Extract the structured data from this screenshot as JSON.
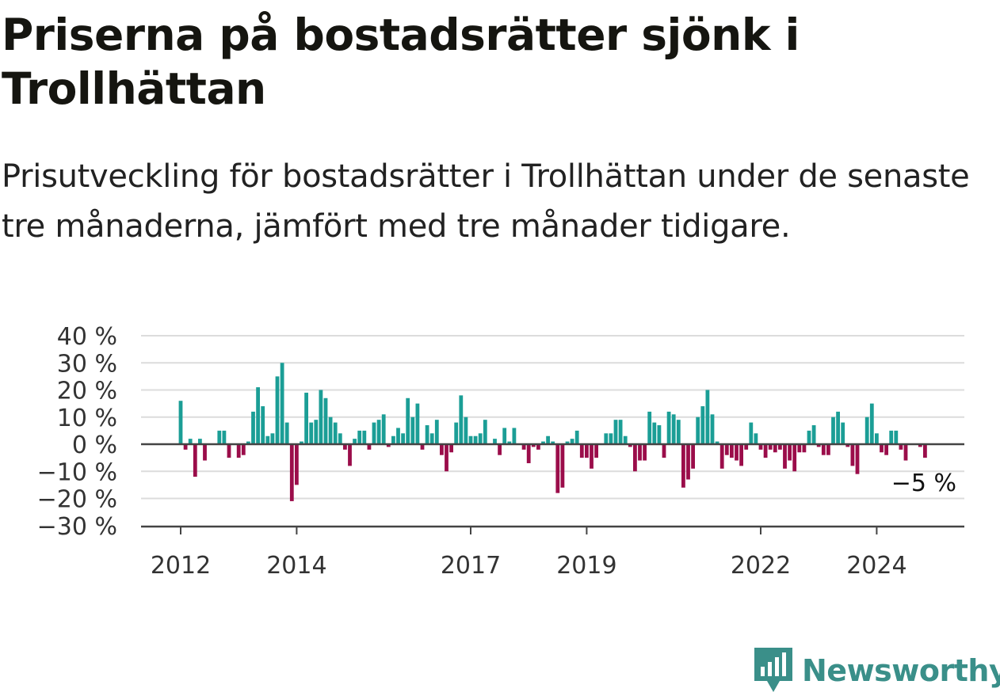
{
  "title": "Priserna på bostadsrätter sjönk i Trollhättan",
  "subtitle": "Prisutveckling för bostadsrätter i Trollhättan under de senaste tre månaderna, jämfört med tre månader tidigare.",
  "brand": "Newsworthy",
  "colors": {
    "positive": "#1b9e96",
    "negative": "#9b0d4a",
    "grid": "#dcdcdc",
    "axis": "#444444",
    "brand": "#3a8f89"
  },
  "chart_data": {
    "type": "bar",
    "title": "Priserna på bostadsrätter sjönk i Trollhättan",
    "xlabel": "",
    "ylabel": "",
    "ylim": [
      -30,
      40
    ],
    "grid": true,
    "y_ticks": [
      {
        "value": 40,
        "label": "40 %"
      },
      {
        "value": 30,
        "label": "30 %"
      },
      {
        "value": 20,
        "label": "20 %"
      },
      {
        "value": 10,
        "label": "10 %"
      },
      {
        "value": 0,
        "label": "0 %"
      },
      {
        "value": -10,
        "label": "−10 %"
      },
      {
        "value": -20,
        "label": "−20 %"
      },
      {
        "value": -30,
        "label": "−30 %"
      }
    ],
    "x_ticks": [
      {
        "month": "2012-01",
        "label": "2012"
      },
      {
        "month": "2014-01",
        "label": "2014"
      },
      {
        "month": "2017-01",
        "label": "2017"
      },
      {
        "month": "2019-01",
        "label": "2019"
      },
      {
        "month": "2022-01",
        "label": "2022"
      },
      {
        "month": "2024-01",
        "label": "2024"
      }
    ],
    "start_month": "2012-01",
    "values": [
      16,
      -2,
      2,
      -12,
      2,
      -6,
      0,
      0,
      5,
      5,
      -5,
      0,
      -5,
      -4,
      1,
      12,
      21,
      14,
      3,
      4,
      25,
      30,
      8,
      -21,
      -15,
      1,
      19,
      8,
      9,
      20,
      17,
      10,
      8,
      4,
      -2,
      -8,
      2,
      5,
      5,
      -2,
      8,
      9,
      11,
      -1,
      3,
      6,
      4,
      17,
      10,
      15,
      -2,
      7,
      4,
      9,
      -4,
      -10,
      -3,
      8,
      18,
      10,
      3,
      3,
      4,
      9,
      0,
      2,
      -4,
      6,
      1,
      6,
      0,
      -2,
      -7,
      -1,
      -2,
      1,
      3,
      1,
      -18,
      -16,
      1,
      2,
      5,
      -5,
      -5,
      -9,
      -5,
      0,
      4,
      4,
      9,
      9,
      3,
      -1,
      -10,
      -6,
      -6,
      12,
      8,
      7,
      -5,
      12,
      11,
      9,
      -16,
      -13,
      -9,
      10,
      14,
      20,
      11,
      1,
      -9,
      -4,
      -5,
      -6,
      -8,
      -2,
      8,
      4,
      -2,
      -5,
      -2,
      -3,
      -2,
      -9,
      -6,
      -10,
      -3,
      -3,
      5,
      7,
      -1,
      -4,
      -4,
      10,
      12,
      8,
      -1,
      -8,
      -11,
      0,
      10,
      15,
      4,
      -3,
      -4,
      5,
      5,
      -2,
      -6,
      0,
      0,
      -1,
      -5
    ],
    "annotations": [
      {
        "text": "−5 %",
        "value": -5
      }
    ]
  }
}
